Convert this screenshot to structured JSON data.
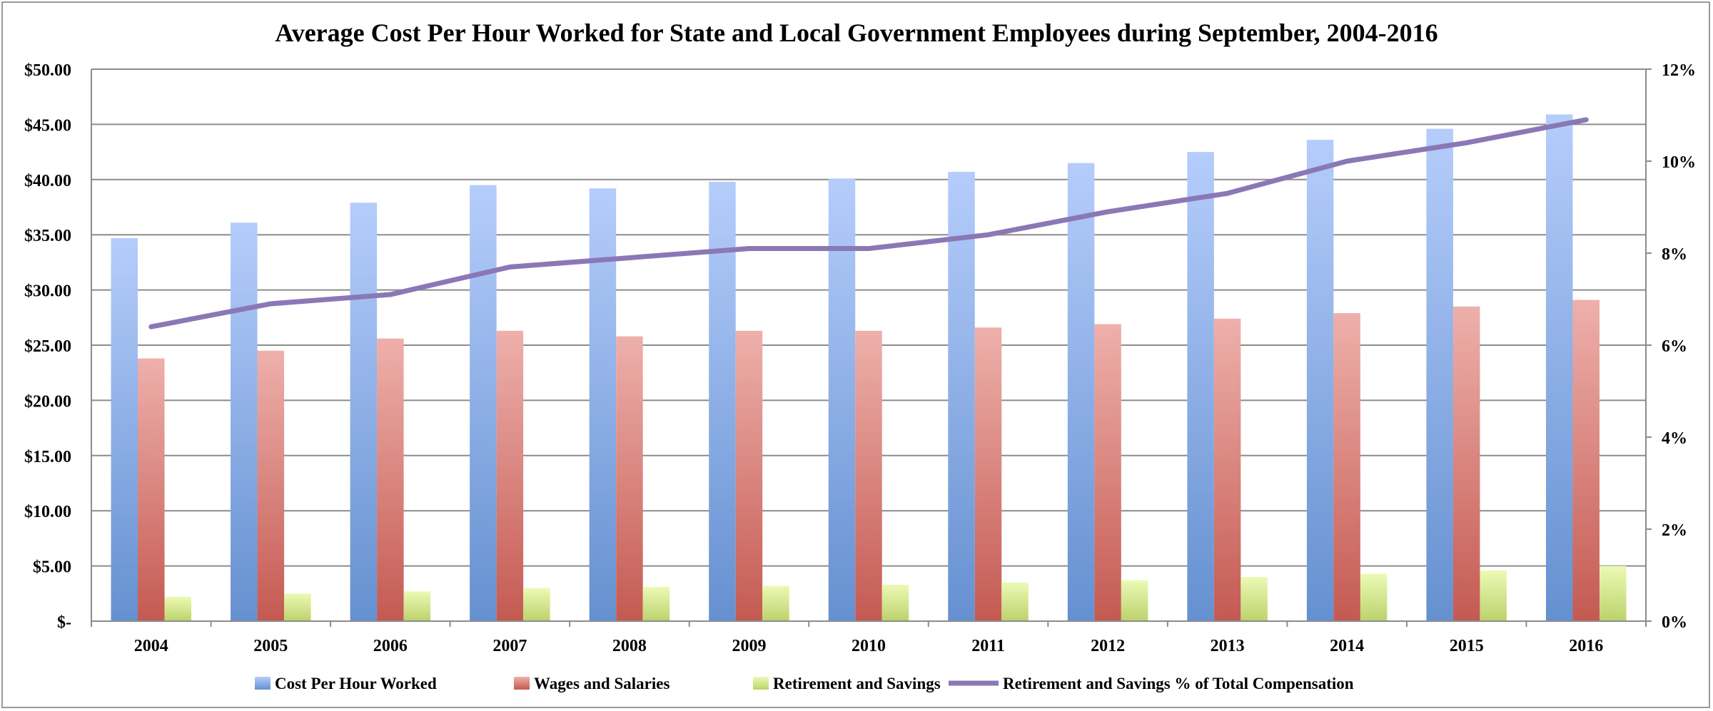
{
  "chart_data": {
    "type": "bar",
    "title": "Average Cost Per Hour Worked for State and Local Government Employees during September, 2004-2016",
    "categories": [
      "2004",
      "2005",
      "2006",
      "2007",
      "2008",
      "2009",
      "2010",
      "2011",
      "2012",
      "2013",
      "2014",
      "2015",
      "2016"
    ],
    "series": [
      {
        "name": "Cost Per Hour Worked",
        "axis": "left",
        "kind": "bar",
        "color": "#6f97d6",
        "values": [
          34.7,
          36.1,
          37.9,
          39.5,
          39.2,
          39.8,
          40.1,
          40.7,
          41.5,
          42.5,
          43.6,
          44.6,
          45.9
        ]
      },
      {
        "name": "Wages and Salaries",
        "axis": "left",
        "kind": "bar",
        "color": "#c8605a",
        "values": [
          23.8,
          24.5,
          25.6,
          26.3,
          25.8,
          26.3,
          26.3,
          26.6,
          26.9,
          27.4,
          27.9,
          28.5,
          29.1
        ]
      },
      {
        "name": "Retirement and Savings",
        "axis": "left",
        "kind": "bar",
        "color": "#c3d77a",
        "values": [
          2.2,
          2.5,
          2.7,
          3.0,
          3.1,
          3.2,
          3.3,
          3.5,
          3.7,
          4.0,
          4.3,
          4.6,
          5.0
        ]
      },
      {
        "name": "Retirement and Savings % of Total Compensation",
        "axis": "right",
        "kind": "line",
        "color": "#8a78b6",
        "values": [
          6.4,
          6.9,
          7.1,
          7.7,
          7.9,
          8.1,
          8.1,
          8.4,
          8.9,
          9.3,
          10.0,
          10.4,
          10.9
        ]
      }
    ],
    "ylim": [
      0,
      50
    ],
    "y2lim": [
      0,
      12
    ],
    "yticks": [
      "$-",
      "$5.00",
      "$10.00",
      "$15.00",
      "$20.00",
      "$25.00",
      "$30.00",
      "$35.00",
      "$40.00",
      "$45.00",
      "$50.00"
    ],
    "y2ticks": [
      "0%",
      "2%",
      "4%",
      "6%",
      "8%",
      "10%",
      "12%"
    ],
    "grid": true,
    "legend": "bottom"
  }
}
